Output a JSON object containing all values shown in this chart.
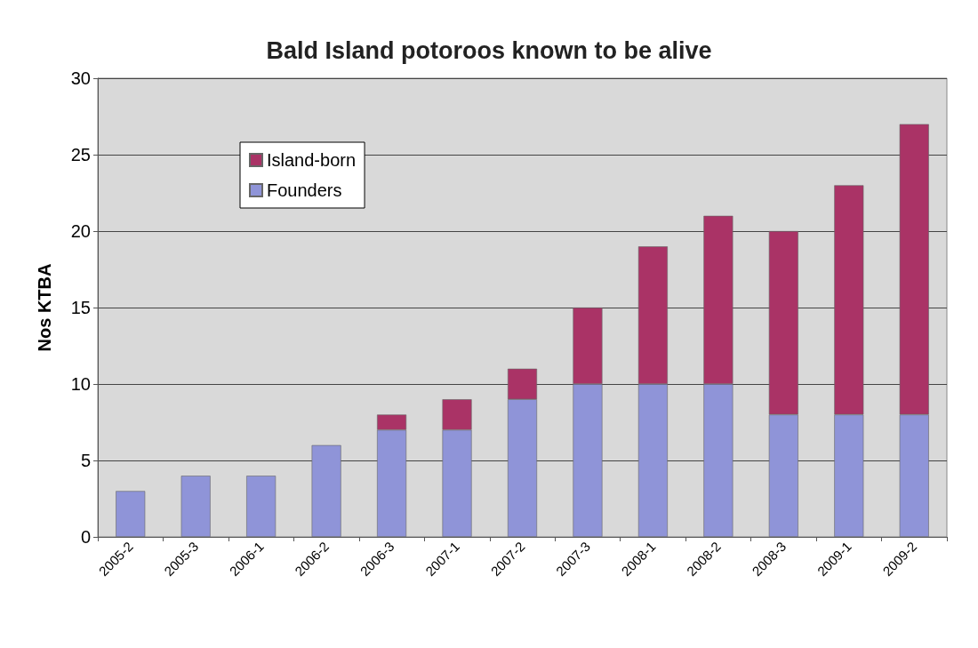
{
  "chart_data": {
    "type": "bar",
    "title": "Bald Island potoroos known to be alive",
    "ylabel": "Nos KTBA",
    "categories": [
      "2005-2",
      "2005-3",
      "2006-1",
      "2006-2",
      "2006-3",
      "2007-1",
      "2007-2",
      "2007-3",
      "2008-1",
      "2008-2",
      "2008-3",
      "2009-1",
      "2009-2"
    ],
    "series": [
      {
        "name": "Founders",
        "color": "#8f94d8",
        "values": [
          3,
          4,
          4,
          6,
          7,
          7,
          9,
          10,
          10,
          10,
          8,
          8,
          8
        ]
      },
      {
        "name": "Island-born",
        "color": "#aa3366",
        "values": [
          null,
          null,
          null,
          null,
          1,
          2,
          2,
          5,
          9,
          11,
          12,
          15,
          19
        ]
      }
    ],
    "stacked": true,
    "ylim": [
      0,
      30
    ],
    "yticks": [
      0,
      5,
      10,
      15,
      20,
      25,
      30
    ],
    "grid": "y",
    "legend": "top left"
  }
}
